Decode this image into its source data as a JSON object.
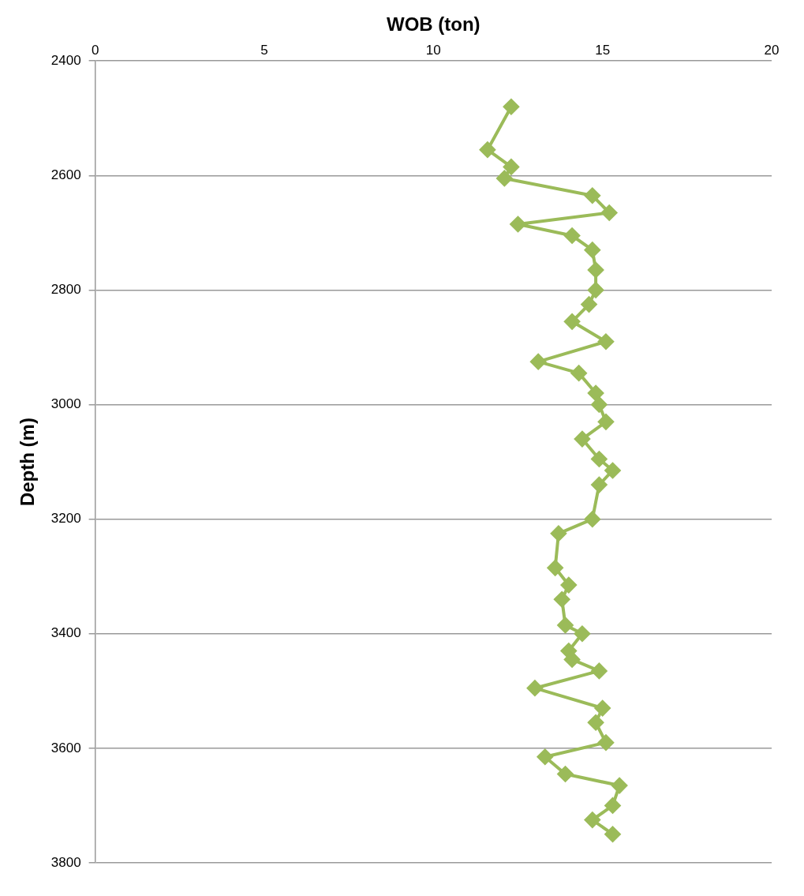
{
  "chart_data": {
    "type": "line",
    "xlabel": "WOB (ton)",
    "ylabel": "Depth (m)",
    "color": "#9bbb59",
    "marker": "diamond",
    "grid": "y",
    "xlim": [
      0,
      20
    ],
    "xticks": [
      0,
      5,
      10,
      15,
      20
    ],
    "ylim": [
      3800,
      2400
    ],
    "yticks": [
      2400,
      2600,
      2800,
      3000,
      3200,
      3400,
      3600,
      3800
    ],
    "x": [
      12.3,
      11.6,
      12.3,
      12.1,
      14.7,
      15.2,
      12.5,
      14.1,
      14.7,
      14.8,
      14.8,
      14.6,
      14.1,
      15.1,
      13.1,
      14.3,
      14.8,
      14.9,
      15.1,
      14.4,
      14.9,
      15.3,
      14.9,
      14.7,
      13.7,
      13.6,
      14.0,
      13.8,
      13.9,
      14.4,
      14.0,
      14.1,
      14.9,
      13.0,
      15.0,
      14.8,
      15.1,
      13.3,
      13.9,
      15.5,
      15.3,
      14.7,
      15.3
    ],
    "values": [
      2480,
      2555,
      2585,
      2605,
      2635,
      2665,
      2685,
      2705,
      2730,
      2765,
      2800,
      2825,
      2855,
      2890,
      2925,
      2945,
      2980,
      3000,
      3030,
      3060,
      3095,
      3115,
      3140,
      3200,
      3225,
      3285,
      3315,
      3340,
      3385,
      3400,
      3430,
      3445,
      3465,
      3495,
      3530,
      3555,
      3590,
      3615,
      3645,
      3665,
      3700,
      3725,
      3750
    ]
  }
}
